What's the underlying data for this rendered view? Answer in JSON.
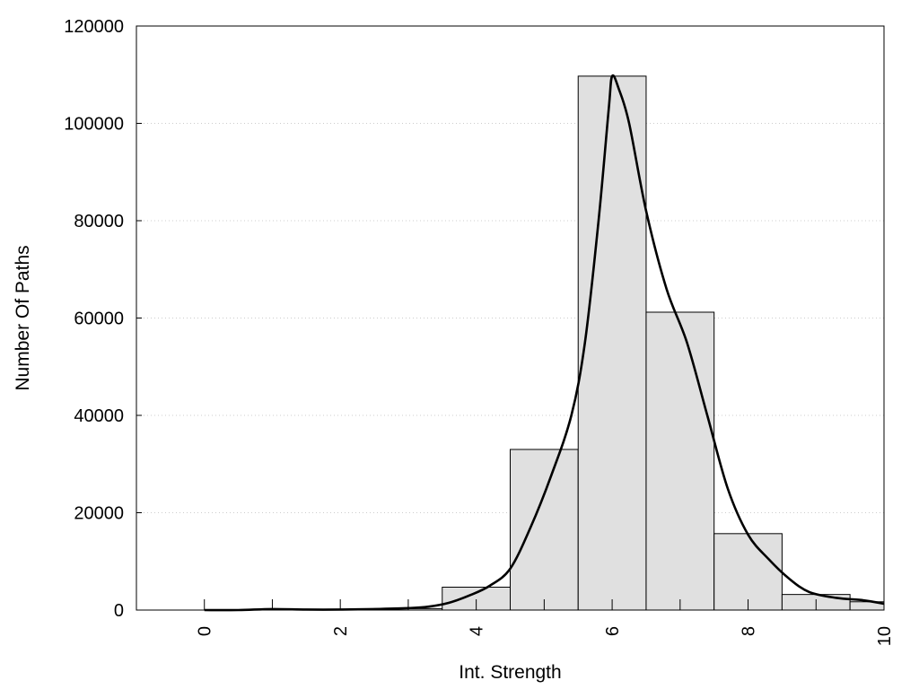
{
  "chart_data": {
    "type": "bar",
    "xlabel": "Int. Strength",
    "ylabel": "Number Of Paths",
    "xlim": [
      -1,
      10
    ],
    "ylim": [
      0,
      120000
    ],
    "x_ticks": [
      0,
      2,
      4,
      6,
      8,
      10
    ],
    "y_ticks": [
      0,
      20000,
      40000,
      60000,
      80000,
      100000,
      120000
    ],
    "grid": "horizontal-dotted",
    "colors": {
      "bar_fill": "#e0e0e0",
      "bar_stroke": "#000000",
      "curve": "#000000",
      "grid": "#cccccc"
    },
    "bins": [
      {
        "start": -0.5,
        "end": 0.5,
        "value": 0
      },
      {
        "start": 0.5,
        "end": 1.5,
        "value": 0
      },
      {
        "start": 1.5,
        "end": 2.5,
        "value": 0
      },
      {
        "start": 2.5,
        "end": 3.5,
        "value": 300
      },
      {
        "start": 3.5,
        "end": 4.5,
        "value": 4700
      },
      {
        "start": 4.5,
        "end": 5.5,
        "value": 33000
      },
      {
        "start": 5.5,
        "end": 6.5,
        "value": 109700
      },
      {
        "start": 6.5,
        "end": 7.5,
        "value": 61200
      },
      {
        "start": 7.5,
        "end": 8.5,
        "value": 15700
      },
      {
        "start": 8.5,
        "end": 9.5,
        "value": 3200
      },
      {
        "start": 9.5,
        "end": 10,
        "value": 1700
      }
    ],
    "curve": [
      [
        0,
        0
      ],
      [
        0.5,
        0
      ],
      [
        1,
        200
      ],
      [
        1.5,
        100
      ],
      [
        2,
        100
      ],
      [
        2.5,
        200
      ],
      [
        3,
        400
      ],
      [
        3.3,
        700
      ],
      [
        3.6,
        1500
      ],
      [
        3.9,
        3000
      ],
      [
        4.2,
        5000
      ],
      [
        4.5,
        8500
      ],
      [
        4.8,
        17000
      ],
      [
        5.1,
        27500
      ],
      [
        5.4,
        40000
      ],
      [
        5.6,
        55000
      ],
      [
        5.8,
        80000
      ],
      [
        5.95,
        103000
      ],
      [
        6.0,
        109700
      ],
      [
        6.1,
        107000
      ],
      [
        6.25,
        100000
      ],
      [
        6.5,
        82000
      ],
      [
        6.8,
        66000
      ],
      [
        7.1,
        55000
      ],
      [
        7.4,
        40000
      ],
      [
        7.7,
        25000
      ],
      [
        8.0,
        15500
      ],
      [
        8.3,
        10500
      ],
      [
        8.6,
        6500
      ],
      [
        8.9,
        3700
      ],
      [
        9.3,
        2500
      ],
      [
        9.7,
        2000
      ],
      [
        10,
        1300
      ]
    ]
  }
}
